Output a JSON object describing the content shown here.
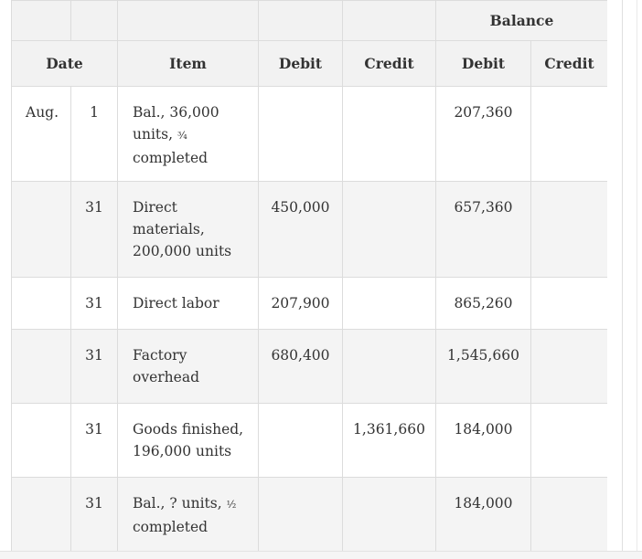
{
  "header": {
    "balance": "Balance",
    "date": "Date",
    "item": "Item",
    "debit": "Debit",
    "credit": "Credit",
    "balance_debit": "Debit",
    "balance_credit": "Credit"
  },
  "rows": [
    {
      "month": "Aug.",
      "day": "1",
      "item_pre": "Bal., 36,000 units, ",
      "frac": "³⁄₄",
      "item_post": " completed",
      "debit": "",
      "credit": "",
      "bal_debit": "207,360",
      "bal_credit": ""
    },
    {
      "month": "",
      "day": "31",
      "item_pre": "Direct materials, 200,000 units",
      "frac": "",
      "item_post": "",
      "debit": "450,000",
      "credit": "",
      "bal_debit": "657,360",
      "bal_credit": ""
    },
    {
      "month": "",
      "day": "31",
      "item_pre": "Direct labor",
      "frac": "",
      "item_post": "",
      "debit": "207,900",
      "credit": "",
      "bal_debit": "865,260",
      "bal_credit": ""
    },
    {
      "month": "",
      "day": "31",
      "item_pre": "Factory overhead",
      "frac": "",
      "item_post": "",
      "debit": "680,400",
      "credit": "",
      "bal_debit": "1,545,660",
      "bal_credit": ""
    },
    {
      "month": "",
      "day": "31",
      "item_pre": "Goods finished, 196,000 units",
      "frac": "",
      "item_post": "",
      "debit": "",
      "credit": "1,361,660",
      "bal_debit": "184,000",
      "bal_credit": ""
    },
    {
      "month": "",
      "day": "31",
      "item_pre": "Bal., ? units, ",
      "frac": "¹⁄₂",
      "item_post": " completed",
      "debit": "",
      "credit": "",
      "bal_debit": "184,000",
      "bal_credit": ""
    }
  ]
}
